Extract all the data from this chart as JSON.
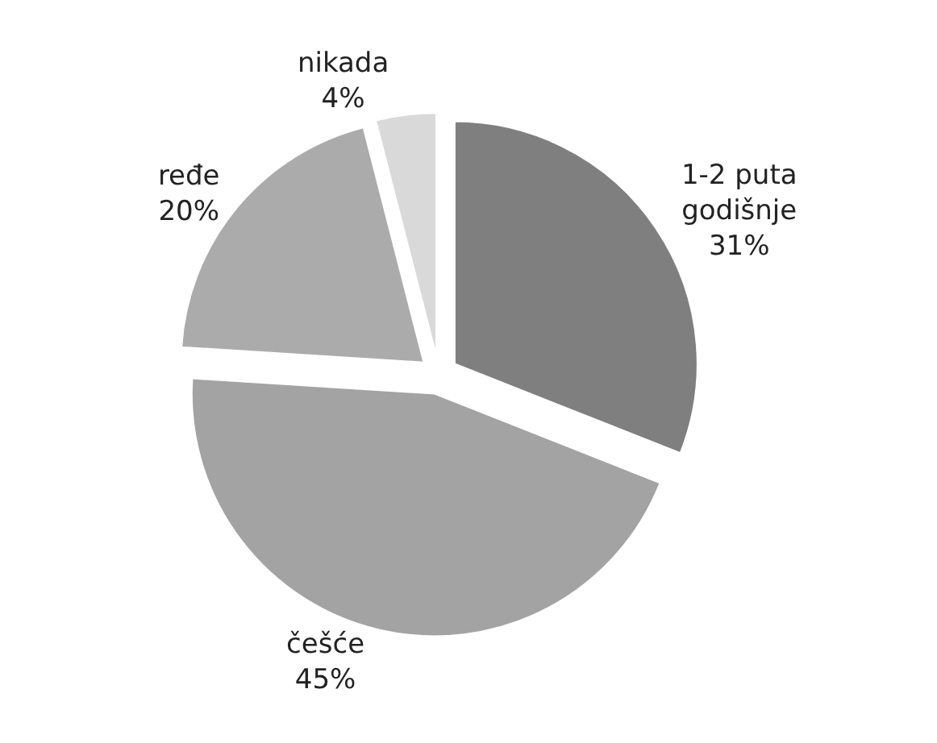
{
  "chart_data": {
    "type": "pie",
    "categories": [
      "1-2 puta godišnje",
      "češće",
      "ređe",
      "nikada"
    ],
    "values": [
      31,
      45,
      20,
      4
    ],
    "colors": [
      "#7f7f7f",
      "#a3a3a3",
      "#ababab",
      "#d9d9d9"
    ],
    "value_labels": [
      "31%",
      "45%",
      "20%",
      "4%"
    ],
    "legend": false
  }
}
